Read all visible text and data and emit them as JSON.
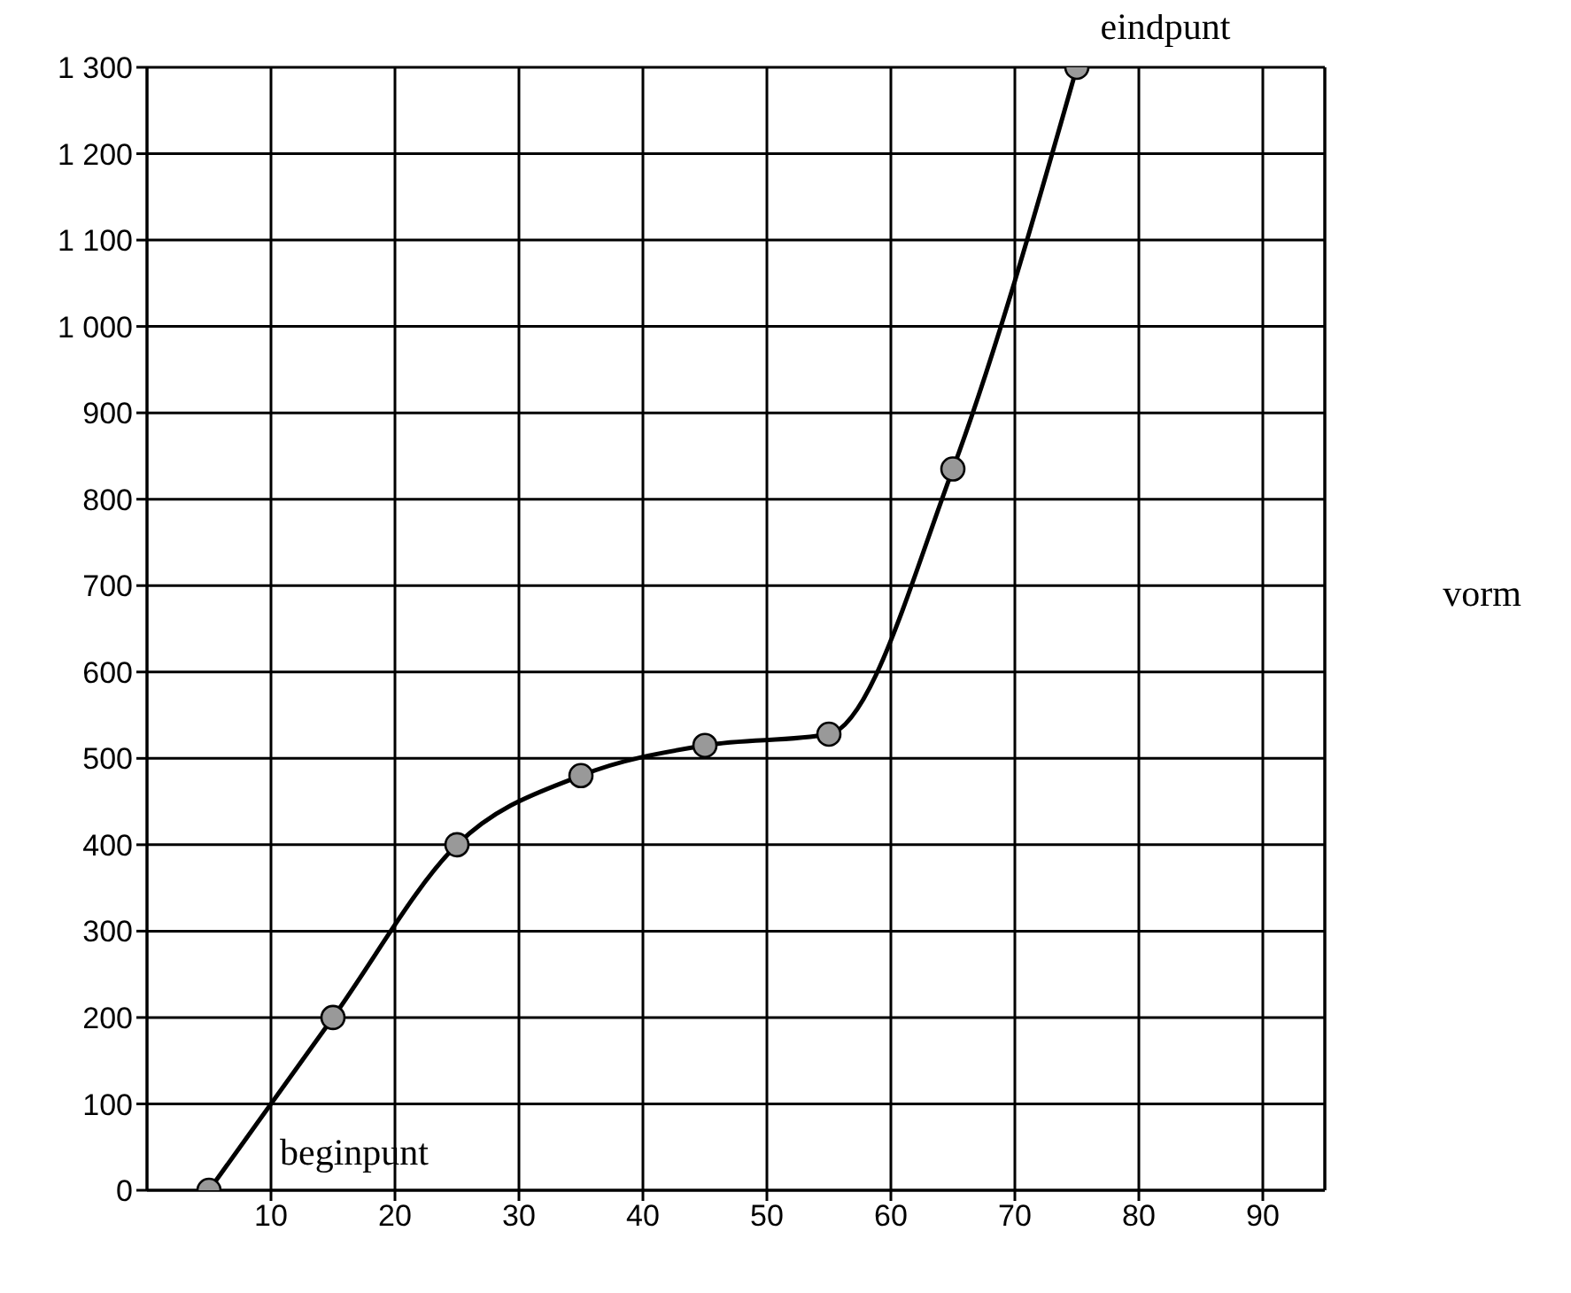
{
  "chart_data": {
    "type": "line",
    "x": [
      5,
      15,
      25,
      35,
      45,
      55,
      65,
      75
    ],
    "series": [
      {
        "color": "#000000",
        "values": [
          0,
          200,
          400,
          480,
          515,
          528,
          835,
          1300
        ]
      }
    ],
    "xlim": [
      0,
      95
    ],
    "xticks": [
      10,
      20,
      30,
      40,
      50,
      60,
      70,
      80,
      90
    ],
    "ylim": [
      0,
      1300
    ],
    "yticks": [
      0,
      100,
      200,
      300,
      400,
      500,
      600,
      700,
      800,
      900,
      {
        "value": 1000,
        "label": "1 000"
      },
      {
        "value": 1100,
        "label": "1 100"
      },
      {
        "value": 1200,
        "label": "1 200"
      },
      {
        "value": 1300,
        "label": "1 300"
      }
    ],
    "grid": true,
    "marker": "circle",
    "line_style": "solid",
    "annotations": [
      {
        "text": "beginpunt",
        "x": 5,
        "y": 0
      },
      {
        "text": "eindpunt",
        "x": 75,
        "y": 1300
      },
      "vorm"
    ]
  }
}
